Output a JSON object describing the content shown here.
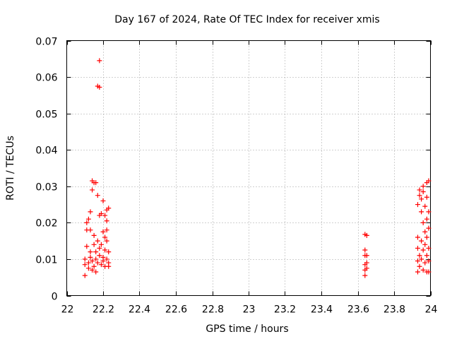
{
  "chart_data": {
    "type": "scatter",
    "title": "Day 167 of 2024, Rate Of TEC Index for receiver xmis",
    "xlabel": "GPS time / hours",
    "ylabel": "ROTI / TECUs",
    "xlim": [
      22,
      24
    ],
    "ylim": [
      0,
      0.07
    ],
    "xticks": [
      22,
      22.2,
      22.4,
      22.6,
      22.8,
      23,
      23.2,
      23.4,
      23.6,
      23.8,
      24
    ],
    "xtick_labels": [
      "22",
      "22.2",
      "22.4",
      "22.6",
      "22.8",
      "23",
      "23.2",
      "23.4",
      "23.6",
      "23.8",
      "24"
    ],
    "yticks": [
      0,
      0.01,
      0.02,
      0.03,
      0.04,
      0.05,
      0.06,
      0.07
    ],
    "ytick_labels": [
      "0",
      "0.01",
      "0.02",
      "0.03",
      "0.04",
      "0.05",
      "0.06",
      "0.07"
    ],
    "grid": true,
    "marker": "+",
    "color": "#ff0000",
    "points": [
      [
        22.1,
        0.0055
      ],
      [
        22.1,
        0.0085
      ],
      [
        22.1,
        0.01
      ],
      [
        22.11,
        0.0135
      ],
      [
        22.11,
        0.018
      ],
      [
        22.11,
        0.02
      ],
      [
        22.12,
        0.021
      ],
      [
        22.12,
        0.009
      ],
      [
        22.12,
        0.0075
      ],
      [
        22.13,
        0.023
      ],
      [
        22.13,
        0.012
      ],
      [
        22.13,
        0.0105
      ],
      [
        22.13,
        0.018
      ],
      [
        22.14,
        0.029
      ],
      [
        22.14,
        0.0095
      ],
      [
        22.14,
        0.007
      ],
      [
        22.14,
        0.0315
      ],
      [
        22.15,
        0.031
      ],
      [
        22.15,
        0.014
      ],
      [
        22.15,
        0.008
      ],
      [
        22.15,
        0.0165
      ],
      [
        22.16,
        0.031
      ],
      [
        22.16,
        0.012
      ],
      [
        22.16,
        0.01
      ],
      [
        22.16,
        0.0065
      ],
      [
        22.17,
        0.0575
      ],
      [
        22.17,
        0.015
      ],
      [
        22.17,
        0.009
      ],
      [
        22.17,
        0.0275
      ],
      [
        22.18,
        0.0572
      ],
      [
        22.18,
        0.0645
      ],
      [
        22.18,
        0.022
      ],
      [
        22.18,
        0.011
      ],
      [
        22.18,
        0.013
      ],
      [
        22.19,
        0.0225
      ],
      [
        22.19,
        0.014
      ],
      [
        22.19,
        0.0085
      ],
      [
        22.2,
        0.026
      ],
      [
        22.2,
        0.0175
      ],
      [
        22.2,
        0.0105
      ],
      [
        22.2,
        0.0095
      ],
      [
        22.21,
        0.022
      ],
      [
        22.21,
        0.016
      ],
      [
        22.21,
        0.0125
      ],
      [
        22.21,
        0.008
      ],
      [
        22.22,
        0.0235
      ],
      [
        22.22,
        0.0205
      ],
      [
        22.22,
        0.018
      ],
      [
        22.22,
        0.015
      ],
      [
        22.22,
        0.01
      ],
      [
        22.23,
        0.024
      ],
      [
        22.23,
        0.012
      ],
      [
        22.23,
        0.009
      ],
      [
        22.23,
        0.008
      ],
      [
        23.64,
        0.0055
      ],
      [
        23.64,
        0.007
      ],
      [
        23.64,
        0.0085
      ],
      [
        23.64,
        0.011
      ],
      [
        23.64,
        0.0125
      ],
      [
        23.64,
        0.0168
      ],
      [
        23.65,
        0.0165
      ],
      [
        23.65,
        0.009
      ],
      [
        23.65,
        0.011
      ],
      [
        23.65,
        0.0075
      ],
      [
        23.93,
        0.0065
      ],
      [
        23.93,
        0.0095
      ],
      [
        23.93,
        0.013
      ],
      [
        23.93,
        0.016
      ],
      [
        23.93,
        0.025
      ],
      [
        23.94,
        0.0275
      ],
      [
        23.94,
        0.029
      ],
      [
        23.94,
        0.011
      ],
      [
        23.94,
        0.008
      ],
      [
        23.95,
        0.0265
      ],
      [
        23.95,
        0.023
      ],
      [
        23.95,
        0.015
      ],
      [
        23.95,
        0.01
      ],
      [
        23.96,
        0.0285
      ],
      [
        23.96,
        0.03
      ],
      [
        23.96,
        0.02
      ],
      [
        23.96,
        0.0125
      ],
      [
        23.96,
        0.007
      ],
      [
        23.97,
        0.0245
      ],
      [
        23.97,
        0.0175
      ],
      [
        23.97,
        0.014
      ],
      [
        23.97,
        0.009
      ],
      [
        23.98,
        0.031
      ],
      [
        23.98,
        0.027
      ],
      [
        23.98,
        0.021
      ],
      [
        23.98,
        0.016
      ],
      [
        23.98,
        0.011
      ],
      [
        23.98,
        0.0065
      ],
      [
        23.99,
        0.0315
      ],
      [
        23.99,
        0.023
      ],
      [
        23.99,
        0.0185
      ],
      [
        23.99,
        0.013
      ],
      [
        23.99,
        0.0095
      ],
      [
        23.99,
        0.0065
      ]
    ]
  }
}
